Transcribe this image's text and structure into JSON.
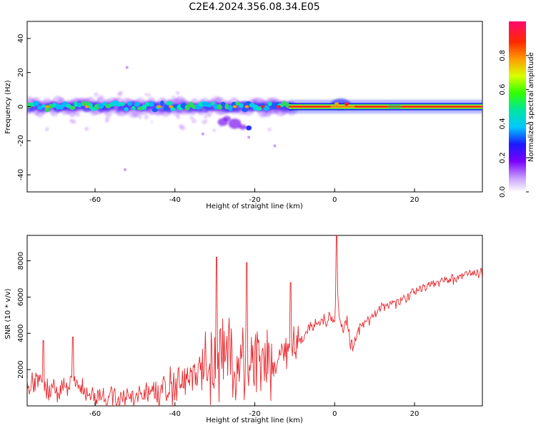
{
  "title": "C2E4.2024.356.08.34.E05",
  "colors": {
    "snr_line": "#e8282d",
    "axis": "#000000",
    "background": "#ffffff"
  },
  "chart_data": [
    {
      "type": "heatmap",
      "xlabel": "Height of straight line (km)",
      "ylabel": "Frequency (Hz)",
      "xlim": [
        -77,
        37
      ],
      "ylim": [
        -50,
        50
      ],
      "xticks": [
        -60,
        -40,
        -20,
        0,
        20
      ],
      "yticks": [
        -40,
        -20,
        0,
        20,
        40
      ],
      "colorbar": {
        "label": "Normalized spectral amplitude",
        "range": [
          0,
          1
        ],
        "ticks": [
          "0.0",
          "0.2",
          "0.4",
          "0.6",
          "0.8"
        ],
        "colormap": "rainbow (white-purple-blue-cyan-green-yellow-orange-red-magenta)"
      },
      "features": [
        {
          "description": "Energy band centered near 0 Hz, scattered from -77 km to -10 km",
          "x_range": [
            -77,
            -10
          ],
          "freq_range": [
            -8,
            6
          ]
        },
        {
          "description": "Continuous high-amplitude line at 0 Hz",
          "x_range": [
            -11,
            37
          ],
          "freq_range": [
            -1.5,
            1.5
          ]
        },
        {
          "description": "Low-amplitude blob near -10 Hz",
          "x_range": [
            -29,
            -21
          ],
          "freq_range": [
            -13,
            -7
          ]
        },
        {
          "description": "Burst near 0 km",
          "x_range": [
            -1,
            5
          ],
          "freq_range": [
            -2,
            4
          ]
        }
      ]
    },
    {
      "type": "line",
      "xlabel": "Height of straight line (km)",
      "ylabel": "SNR (10 * v/v)",
      "xlim": [
        -77,
        37
      ],
      "ylim": [
        0,
        9400
      ],
      "xticks": [
        -60,
        -40,
        -20,
        0,
        20
      ],
      "yticks": [
        2000,
        4000,
        6000,
        8000
      ],
      "series": [
        {
          "x": [
            -77,
            -74,
            -71,
            -68,
            -65,
            -62,
            -59,
            -56,
            -53,
            -50,
            -47,
            -44,
            -42,
            -40,
            -38,
            -36,
            -34,
            -32,
            -30,
            -28,
            -26,
            -24,
            -22,
            -20,
            -18,
            -16,
            -14,
            -12,
            -10,
            -8,
            -6,
            -4,
            -2,
            0,
            0.5,
            1,
            2,
            3,
            4,
            5,
            6,
            8,
            10,
            12,
            14,
            16,
            18,
            20,
            22,
            24,
            26,
            28,
            30,
            32,
            34,
            37
          ],
          "values": [
            1100,
            1300,
            1000,
            900,
            1200,
            700,
            500,
            600,
            500,
            500,
            600,
            800,
            1000,
            1200,
            1400,
            1600,
            1800,
            1900,
            2300,
            2400,
            2500,
            2600,
            2500,
            2300,
            2600,
            2700,
            2600,
            3000,
            3400,
            3800,
            4300,
            4500,
            4700,
            4800,
            7500,
            5000,
            4200,
            4800,
            3400,
            3500,
            4200,
            4600,
            5100,
            5500,
            5600,
            5700,
            5900,
            6300,
            6500,
            6700,
            6800,
            6900,
            7000,
            7200,
            7300,
            7400
          ]
        }
      ],
      "spikes": [
        {
          "x": -29.5,
          "value": 8200
        },
        {
          "x": -22,
          "value": 7900
        },
        {
          "x": -11,
          "value": 6800
        },
        {
          "x": 0.5,
          "value": 9400
        },
        {
          "x": -65.5,
          "value": 3800
        },
        {
          "x": -73,
          "value": 3600
        }
      ]
    }
  ]
}
